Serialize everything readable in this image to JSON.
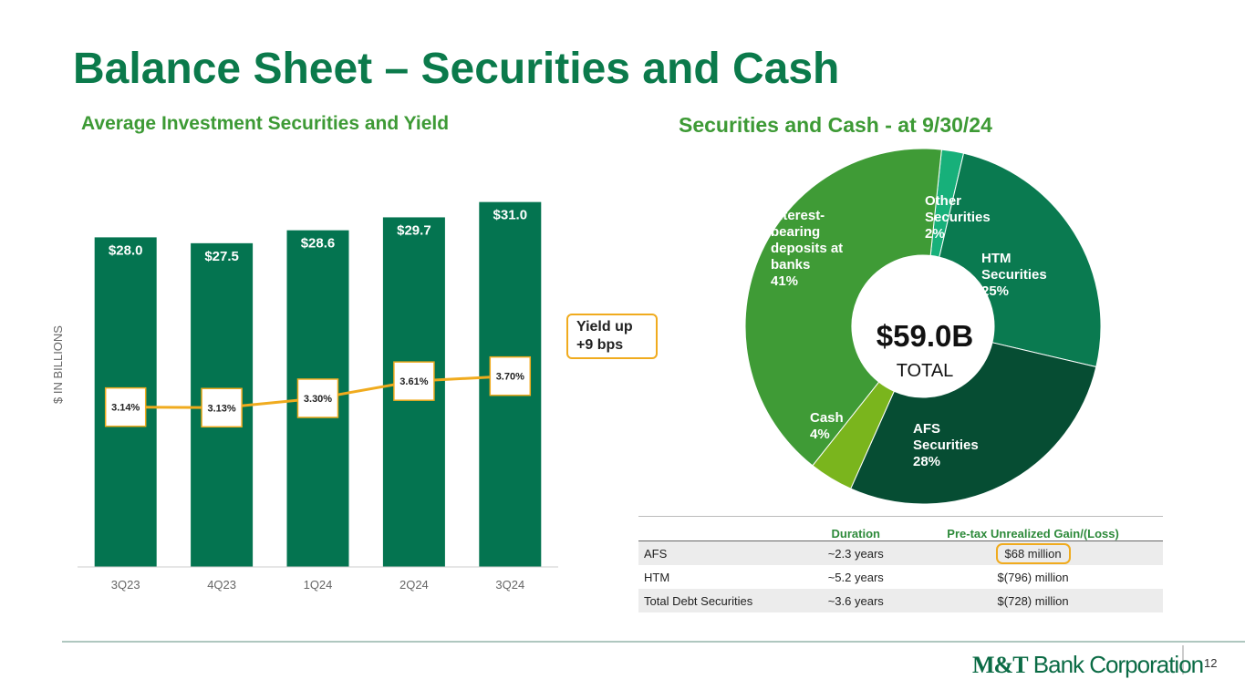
{
  "title": "Balance Sheet – Securities and Cash",
  "chart_data": [
    {
      "type": "bar",
      "title": "Average Investment Securities and Yield",
      "y_label": "$ IN BILLIONS",
      "categories": [
        "3Q23",
        "4Q23",
        "1Q24",
        "2Q24",
        "3Q24"
      ],
      "series": [
        {
          "type": "bar",
          "color": "#047450",
          "values": [
            28,
            27.5,
            28.6,
            29.7,
            31
          ],
          "value_labels": [
            "$28.0",
            "$27.5",
            "$28.6",
            "$29.7",
            "$31.0"
          ]
        },
        {
          "type": "line",
          "axis": "y2",
          "color": "#f0ab1e",
          "values": [
            3.14,
            3.13,
            3.3,
            3.61,
            3.7
          ],
          "value_labels": [
            "3.14%",
            "3.13%",
            "3.30%",
            "3.61%",
            "3.70%"
          ]
        }
      ],
      "ylim": [
        0,
        35
      ],
      "y2lim": [
        0.25,
        7.7
      ],
      "annotation": [
        "Yield up",
        "+9 bps"
      ]
    },
    {
      "type": "pie",
      "title": "Securities and Cash - at 9/30/24",
      "categories": [
        "Other Securities",
        "HTM Securities",
        "AFS Securities",
        "Cash",
        "Interest-bearing deposits at banks"
      ],
      "values": [
        2,
        25,
        28,
        4,
        41
      ],
      "value_labels": [
        "2%",
        "25%",
        "28%",
        "4%",
        "41%"
      ],
      "colors": [
        "#17b07a",
        "#0a7a50",
        "#064d33",
        "#7ab51d",
        "#3f9b36"
      ],
      "center_label": "$59.0B",
      "center_sublabel": "TOTAL"
    }
  ],
  "table": {
    "header": [
      "Duration",
      "Pre-tax Unrealized Gain/(Loss)"
    ],
    "rows": [
      [
        "AFS",
        "~2.3 years",
        "$68 million"
      ],
      [
        "HTM",
        "~5.2 years",
        "$(796) million"
      ],
      [
        "Total Debt Securities",
        "~3.6 years",
        "$(728) million"
      ]
    ]
  },
  "footer": {
    "logo": [
      "M&T",
      "Bank Corporation"
    ],
    "page": "12"
  }
}
